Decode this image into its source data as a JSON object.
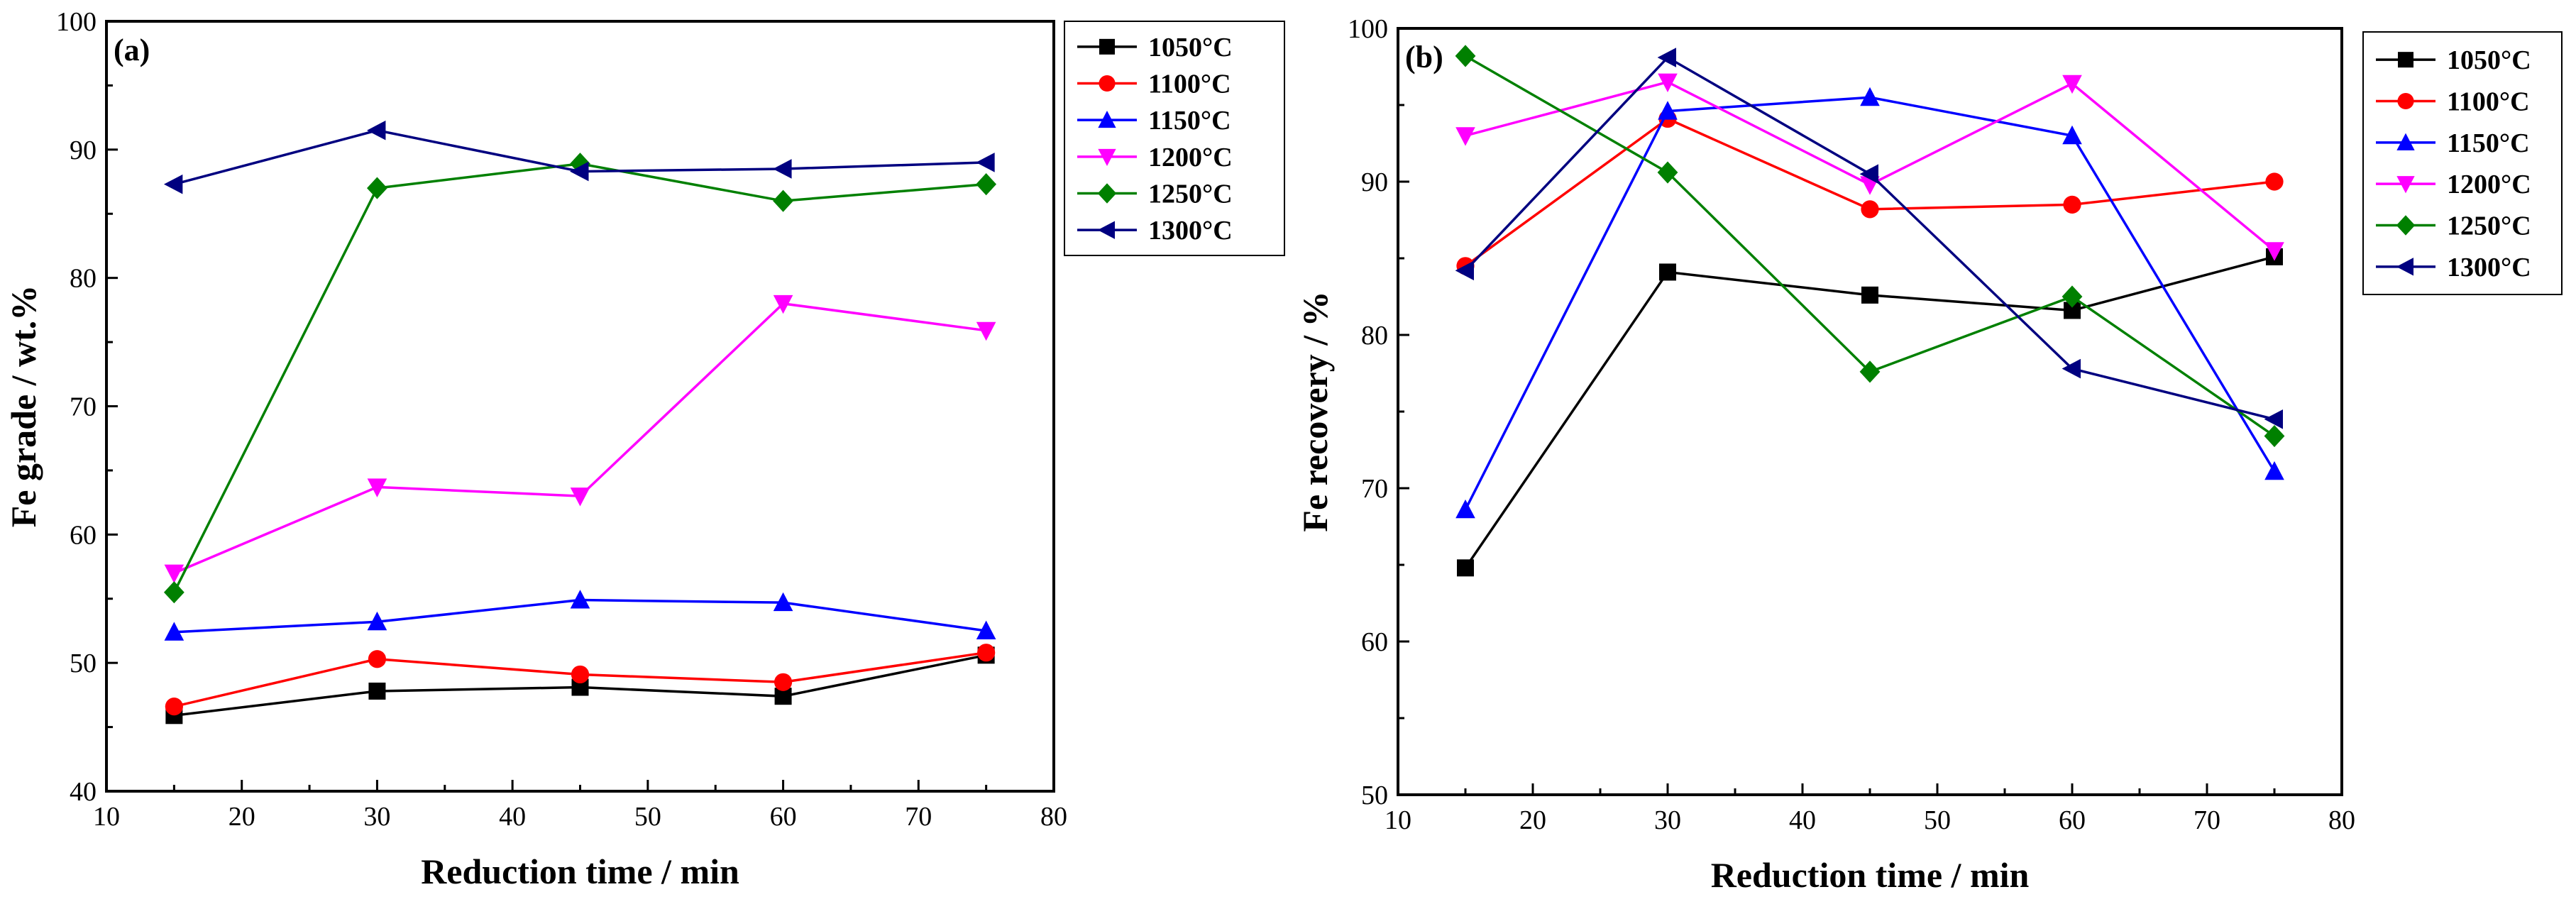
{
  "colors": {
    "1050°C": "#000000",
    "1100°C": "#ff0000",
    "1150°C": "#0000ff",
    "1200°C": "#ff00ff",
    "1250°C": "#008000",
    "1300°C": "#000080"
  },
  "chart_data": [
    {
      "type": "line",
      "panel_label": "(a)",
      "xlabel": "Reduction time / min",
      "ylabel": "Fe grade / wt.%",
      "xlim": [
        10,
        80
      ],
      "ylim": [
        40,
        100
      ],
      "xticks": [
        10,
        20,
        30,
        40,
        50,
        60,
        70,
        80
      ],
      "yticks": [
        40,
        50,
        60,
        70,
        80,
        90,
        100
      ],
      "legend_position": "outside-top-right",
      "x": [
        15,
        30,
        45,
        60,
        75
      ],
      "series": [
        {
          "name": "1050°C",
          "marker": "square",
          "values": [
            45.9,
            47.8,
            48.1,
            47.4,
            50.6
          ]
        },
        {
          "name": "1100°C",
          "marker": "circle",
          "values": [
            46.6,
            50.3,
            49.1,
            48.5,
            50.8
          ]
        },
        {
          "name": "1150°C",
          "marker": "triangle-up",
          "values": [
            52.4,
            53.2,
            54.9,
            54.7,
            52.5
          ]
        },
        {
          "name": "1200°C",
          "marker": "triangle-down",
          "values": [
            57.0,
            63.7,
            63.0,
            78.0,
            75.9
          ]
        },
        {
          "name": "1250°C",
          "marker": "diamond",
          "values": [
            55.5,
            87.0,
            88.9,
            86.0,
            87.3
          ]
        },
        {
          "name": "1300°C",
          "marker": "triangle-left",
          "values": [
            87.3,
            91.5,
            88.3,
            88.5,
            89.0
          ]
        }
      ]
    },
    {
      "type": "line",
      "panel_label": "(b)",
      "xlabel": "Reduction time / min",
      "ylabel": "Fe recovery / %",
      "xlim": [
        10,
        80
      ],
      "ylim": [
        50,
        100
      ],
      "xticks": [
        10,
        20,
        30,
        40,
        50,
        60,
        70,
        80
      ],
      "yticks": [
        50,
        60,
        70,
        80,
        90,
        100
      ],
      "legend_position": "outside-top-right",
      "x": [
        15,
        30,
        45,
        60,
        75
      ],
      "series": [
        {
          "name": "1050°C",
          "marker": "square",
          "values": [
            64.8,
            84.1,
            82.6,
            81.6,
            85.1
          ]
        },
        {
          "name": "1100°C",
          "marker": "circle",
          "values": [
            84.5,
            94.1,
            88.2,
            88.5,
            90.0
          ]
        },
        {
          "name": "1150°C",
          "marker": "triangle-up",
          "values": [
            68.6,
            94.6,
            95.5,
            93.0,
            71.1
          ]
        },
        {
          "name": "1200°C",
          "marker": "triangle-down",
          "values": [
            93.0,
            96.5,
            89.8,
            96.4,
            85.5
          ]
        },
        {
          "name": "1250°C",
          "marker": "diamond",
          "values": [
            98.2,
            90.6,
            77.6,
            82.5,
            73.4
          ]
        },
        {
          "name": "1300°C",
          "marker": "triangle-left",
          "values": [
            84.2,
            98.1,
            90.5,
            77.8,
            74.5
          ]
        }
      ]
    }
  ]
}
